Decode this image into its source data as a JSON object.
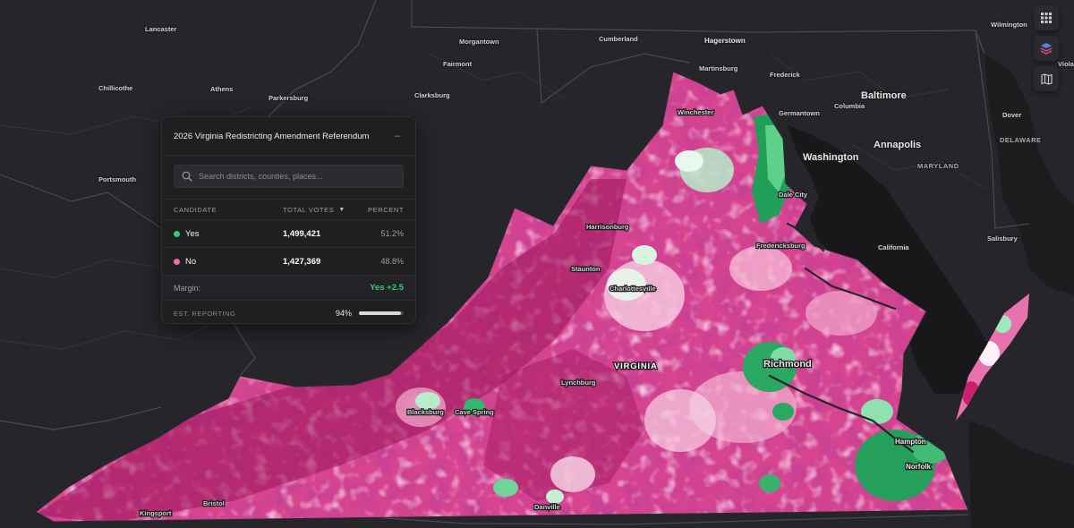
{
  "panel": {
    "title": "2026 Virginia Redistricting Amendment Referendum",
    "collapse_label": "–",
    "search_placeholder": "Search districts, counties, places...",
    "columns": {
      "candidate": "CANDIDATE",
      "votes": "TOTAL VOTES",
      "percent": "PERCENT"
    },
    "rows": [
      {
        "name": "Yes",
        "votes": "1,499,421",
        "percent": "51.2%",
        "color": "#2fcf78"
      },
      {
        "name": "No",
        "votes": "1,427,369",
        "percent": "48.8%",
        "color": "#f06aa9"
      }
    ],
    "margin_label": "Margin:",
    "margin_value": "Yes +2.5",
    "reporting_label": "EST. REPORTING",
    "reporting_value": "94%",
    "reporting_fraction": 0.94
  },
  "toolbar": {
    "buttons": [
      {
        "name": "grid-view-button",
        "icon": "grid-icon"
      },
      {
        "name": "layers-button",
        "icon": "layers-icon"
      },
      {
        "name": "basemap-button",
        "icon": "map-icon"
      }
    ]
  },
  "map": {
    "state_label": "VIRGINIA",
    "places": [
      "Lancaster",
      "Chillicothe",
      "Athens",
      "Parkersburg",
      "Morgantown",
      "Fairmont",
      "Clarksburg",
      "Cumberland",
      "Hagerstown",
      "Martinsburg",
      "Frederick",
      "Wilmington",
      "Portsmouth",
      "Winchester",
      "Germantown",
      "Columbia",
      "Baltimore",
      "Dover",
      "Annapolis",
      "Washington",
      "DELAWARE",
      "MARYLAND",
      "Dale City",
      "Harrisonburg",
      "Fredericksburg",
      "California",
      "Salisbury",
      "Staunton",
      "Charlottesville",
      "Richmond",
      "Lynchburg",
      "Blacksburg",
      "Cave Spring",
      "Hampton",
      "Norfolk",
      "Danville",
      "Bristol",
      "Kingsport",
      "Viola"
    ],
    "colors": {
      "background": "#26262a",
      "water": "#18181b",
      "no_dark": "#8e0c4e",
      "no_mid": "#c2246f",
      "no_light": "#ee8bbb",
      "yes_light": "#c8f0d6",
      "yes_dark": "#1f9f58"
    }
  }
}
